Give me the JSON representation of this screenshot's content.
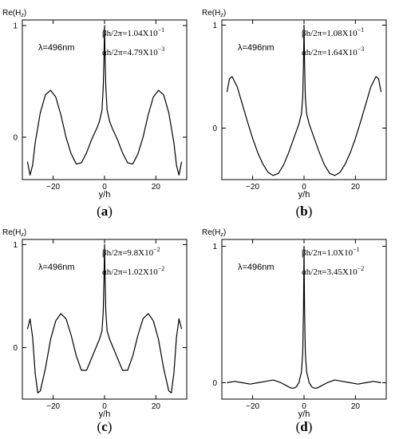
{
  "chart_data": [
    {
      "type": "line",
      "panel_label": "a",
      "ylabel": "Re(H",
      "ylabel_sub": "z",
      "ylabel_close": ")",
      "xlabel": "y/h",
      "xlim": [
        -32,
        32
      ],
      "ylim": [
        -0.38,
        1.05
      ],
      "xticks": [
        -20,
        0,
        20
      ],
      "xtick_labels": [
        "−20",
        "0",
        "20"
      ],
      "yticks": [
        0,
        1
      ],
      "ytick_labels": [
        "0",
        "1"
      ],
      "annotations": [
        "λ=496nm",
        "βh/2π=1.04X10",
        "αh/2π=4.79X10"
      ],
      "annotation_exponents": [
        "",
        "−1",
        "−3"
      ],
      "series": [
        {
          "x": [
            -30,
            -29,
            -28,
            -27,
            -25,
            -23,
            -21,
            -19,
            -17,
            -15,
            -13,
            -11,
            -9,
            -7,
            -5,
            -3,
            -2,
            -1,
            -0.5,
            -0.2,
            0,
            0.2,
            0.5,
            1,
            2,
            3,
            5,
            7,
            9,
            11,
            13,
            15,
            17,
            19,
            21,
            23,
            25,
            27,
            28,
            29,
            30
          ],
          "y": [
            -0.22,
            -0.34,
            -0.25,
            -0.05,
            0.22,
            0.38,
            0.42,
            0.36,
            0.2,
            0.0,
            -0.15,
            -0.24,
            -0.23,
            -0.14,
            -0.02,
            0.08,
            0.14,
            0.24,
            0.45,
            0.72,
            1.0,
            0.72,
            0.45,
            0.24,
            0.14,
            0.08,
            -0.02,
            -0.14,
            -0.23,
            -0.24,
            -0.15,
            0.0,
            0.2,
            0.36,
            0.42,
            0.38,
            0.22,
            -0.05,
            -0.25,
            -0.34,
            -0.22
          ]
        }
      ]
    },
    {
      "type": "line",
      "panel_label": "b",
      "ylabel": "Re(H",
      "ylabel_sub": "z",
      "ylabel_close": ")",
      "xlabel": "y/h",
      "xlim": [
        -32,
        32
      ],
      "ylim": [
        -0.5,
        1.05
      ],
      "xticks": [
        -20,
        0,
        20
      ],
      "xtick_labels": [
        "−20",
        "0",
        "20"
      ],
      "yticks": [
        0,
        1
      ],
      "ytick_labels": [
        "0",
        "1"
      ],
      "annotations": [
        "λ=496nm",
        "βh/2π=1.08X10",
        "αh/2π=1.64X10"
      ],
      "annotation_exponents": [
        "",
        "−1",
        "−3"
      ],
      "series": [
        {
          "x": [
            -30,
            -29,
            -28,
            -26,
            -24,
            -22,
            -20,
            -18,
            -16,
            -14,
            -12,
            -10,
            -8,
            -6,
            -4,
            -2,
            -1,
            -0.5,
            -0.2,
            0,
            0.2,
            0.5,
            1,
            2,
            4,
            6,
            8,
            10,
            12,
            14,
            16,
            18,
            20,
            22,
            24,
            26,
            28,
            29,
            30
          ],
          "y": [
            0.35,
            0.48,
            0.5,
            0.4,
            0.23,
            0.06,
            -0.1,
            -0.24,
            -0.35,
            -0.43,
            -0.46,
            -0.44,
            -0.36,
            -0.24,
            -0.1,
            0.04,
            0.14,
            0.3,
            0.65,
            1.0,
            0.65,
            0.3,
            0.14,
            0.04,
            -0.1,
            -0.24,
            -0.36,
            -0.44,
            -0.46,
            -0.43,
            -0.35,
            -0.24,
            -0.1,
            0.06,
            0.23,
            0.4,
            0.5,
            0.48,
            0.35
          ]
        }
      ]
    },
    {
      "type": "line",
      "panel_label": "c",
      "ylabel": "Re(H",
      "ylabel_sub": "z",
      "ylabel_close": ")",
      "xlabel": "y/h",
      "xlim": [
        -32,
        32
      ],
      "ylim": [
        -0.5,
        1.05
      ],
      "xticks": [
        -20,
        0,
        20
      ],
      "xtick_labels": [
        "−20",
        "0",
        "20"
      ],
      "yticks": [
        0,
        1
      ],
      "ytick_labels": [
        "0",
        "1"
      ],
      "annotations": [
        "λ=496nm",
        "βh/2π=9.8X10",
        "αh/2π=1.02X10"
      ],
      "annotation_exponents": [
        "",
        "−2",
        "−2"
      ],
      "series": [
        {
          "x": [
            -30,
            -29,
            -28,
            -27,
            -26,
            -25,
            -23,
            -21,
            -19,
            -17,
            -15,
            -13,
            -11,
            -9,
            -7,
            -5,
            -3,
            -2,
            -1,
            -0.5,
            -0.2,
            0,
            0.2,
            0.5,
            1,
            2,
            3,
            5,
            7,
            9,
            11,
            13,
            15,
            17,
            19,
            21,
            23,
            25,
            26,
            27,
            28,
            29,
            30
          ],
          "y": [
            0.18,
            0.28,
            0.1,
            -0.25,
            -0.44,
            -0.42,
            -0.2,
            0.08,
            0.26,
            0.33,
            0.28,
            0.12,
            -0.08,
            -0.22,
            -0.22,
            -0.1,
            0.02,
            0.08,
            0.16,
            0.35,
            0.68,
            1.0,
            0.68,
            0.35,
            0.16,
            0.08,
            0.02,
            -0.1,
            -0.22,
            -0.22,
            -0.08,
            0.12,
            0.28,
            0.33,
            0.26,
            0.08,
            -0.2,
            -0.42,
            -0.44,
            -0.25,
            0.1,
            0.28,
            0.18
          ]
        }
      ]
    },
    {
      "type": "line",
      "panel_label": "d",
      "ylabel": "Re(H",
      "ylabel_sub": "z",
      "ylabel_close": ")",
      "xlabel": "y/h",
      "xlim": [
        -32,
        32
      ],
      "ylim": [
        -0.12,
        1.05
      ],
      "xticks": [
        -20,
        0,
        20
      ],
      "xtick_labels": [
        "−20",
        "0",
        "20"
      ],
      "yticks": [
        0,
        1
      ],
      "ytick_labels": [
        "0",
        "1"
      ],
      "annotations": [
        "λ=496nm",
        "βh/2π=1.0X10",
        "αh/2π=3.45X10"
      ],
      "annotation_exponents": [
        "",
        "−1",
        "−2"
      ],
      "series": [
        {
          "x": [
            -30,
            -27,
            -24,
            -21,
            -18,
            -15,
            -12,
            -9,
            -7,
            -5,
            -4,
            -3,
            -2,
            -1,
            -0.5,
            -0.2,
            0,
            0.2,
            0.5,
            1,
            2,
            3,
            4,
            5,
            7,
            9,
            12,
            15,
            18,
            21,
            24,
            27,
            30
          ],
          "y": [
            0.0,
            0.01,
            0.0,
            -0.01,
            0.0,
            0.01,
            0.02,
            0.0,
            -0.02,
            -0.04,
            -0.04,
            -0.03,
            0.0,
            0.08,
            0.22,
            0.55,
            1.0,
            0.55,
            0.22,
            0.08,
            0.0,
            -0.03,
            -0.04,
            -0.04,
            -0.02,
            0.0,
            0.02,
            0.01,
            0.0,
            -0.01,
            0.0,
            0.01,
            0.0
          ]
        }
      ]
    }
  ]
}
